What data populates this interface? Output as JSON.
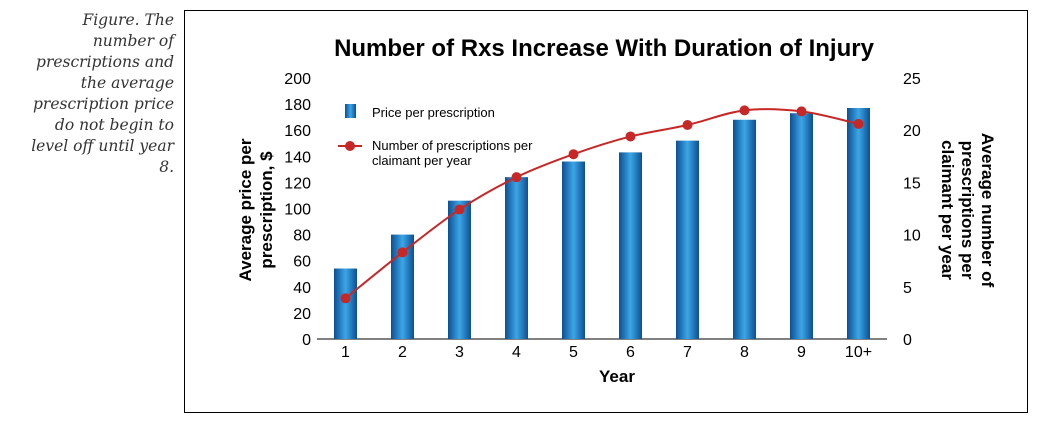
{
  "caption": "Figure. The number of prescriptions and the average prescription price do not begin to level off until year 8.",
  "chart_data": {
    "type": "bar",
    "title": "Number of Rxs Increase With Duration of Injury",
    "xlabel": "Year",
    "ylabel": "Average price per prescription, $",
    "ylabel_lines": [
      "Average price per",
      "prescription, $"
    ],
    "y2label": "Average number of prescriptions per claimant per year",
    "y2label_lines": [
      "Average number of",
      "prescriptions per",
      "claimant per year"
    ],
    "categories": [
      "1",
      "2",
      "3",
      "4",
      "5",
      "6",
      "7",
      "8",
      "9",
      "10+"
    ],
    "ylim": [
      0,
      200
    ],
    "yticks": [
      0,
      20,
      40,
      60,
      80,
      100,
      120,
      140,
      160,
      180,
      200
    ],
    "y2lim": [
      0,
      25
    ],
    "y2ticks": [
      0,
      5,
      10,
      15,
      20,
      25
    ],
    "series": [
      {
        "name": "Price per prescription",
        "type": "bar",
        "axis": "left",
        "values": [
          54,
          80,
          106,
          124,
          136,
          143,
          152,
          168,
          173,
          177
        ]
      },
      {
        "name": "Number of prescriptions per claimant per year",
        "type": "line",
        "axis": "right",
        "legend_lines": [
          "Number of prescriptions per",
          "claimant per year"
        ],
        "values": [
          3.9,
          8.3,
          12.4,
          15.5,
          17.7,
          19.4,
          20.5,
          21.9,
          21.8,
          20.6
        ]
      }
    ],
    "colors": {
      "bar_dark": "#0d4f93",
      "bar_light": "#3ba6e6",
      "line": "#c62828"
    }
  }
}
